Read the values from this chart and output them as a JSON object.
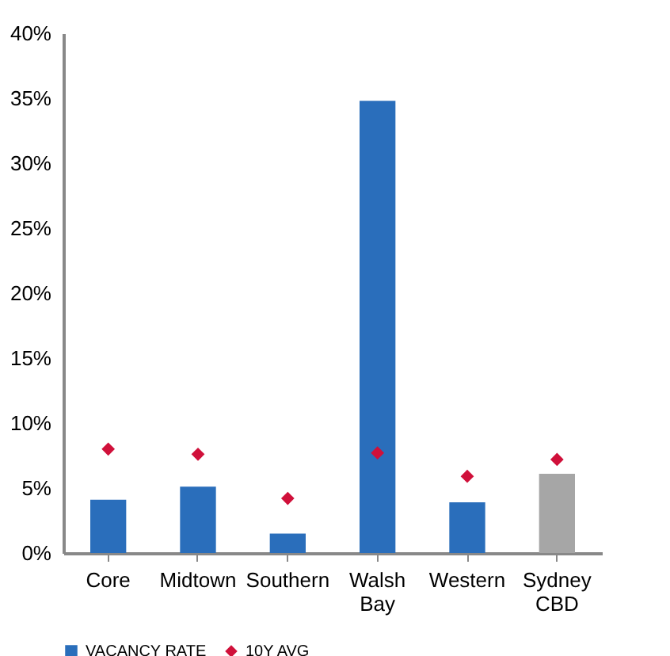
{
  "chart_data": {
    "type": "bar",
    "categories": [
      "Core",
      "Midtown",
      "Southern",
      "Walsh Bay",
      "Western",
      "Sydney CBD"
    ],
    "series": [
      {
        "name": "VACANCY RATE",
        "color": "#2a6ebb",
        "colors": [
          "#2a6ebb",
          "#2a6ebb",
          "#2a6ebb",
          "#2a6ebb",
          "#2a6ebb",
          "#a6a6a6"
        ],
        "values": [
          4.1,
          5.1,
          1.5,
          34.8,
          3.9,
          6.1
        ]
      },
      {
        "name": "10Y AVG",
        "type": "scatter",
        "marker": "diamond",
        "color": "#d0103a",
        "values": [
          8.0,
          7.6,
          4.2,
          7.7,
          5.9,
          7.2
        ]
      }
    ],
    "ylim": [
      0,
      40
    ],
    "yticks": [
      {
        "value": 0,
        "label": "0%"
      },
      {
        "value": 5,
        "label": "5%"
      },
      {
        "value": 10,
        "label": "10%"
      },
      {
        "value": 15,
        "label": "15%"
      },
      {
        "value": 20,
        "label": "20%"
      },
      {
        "value": 25,
        "label": "25%"
      },
      {
        "value": 30,
        "label": "30%"
      },
      {
        "value": 35,
        "label": "35%"
      },
      {
        "value": 40,
        "label": "40%"
      }
    ],
    "grid": false,
    "legend": "bottom"
  }
}
